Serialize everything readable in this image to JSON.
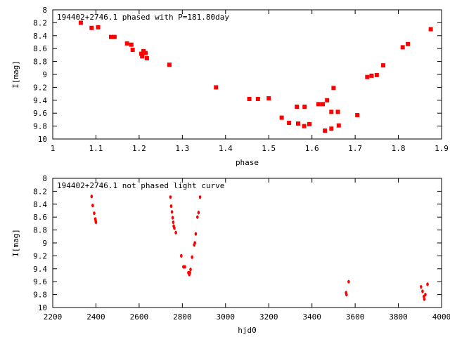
{
  "chart_data": [
    {
      "type": "scatter",
      "title": "194402+2746.1 phased with P=181.80day",
      "xlabel": "phase",
      "ylabel": "I[mag]",
      "xlim": [
        1,
        1.9
      ],
      "ylim": [
        10,
        8
      ],
      "y_inverted": true,
      "xticks": [
        1,
        1.1,
        1.2,
        1.3,
        1.4,
        1.5,
        1.6,
        1.7,
        1.8,
        1.9
      ],
      "yticks": [
        8,
        8.2,
        8.4,
        8.6,
        8.8,
        9,
        9.2,
        9.4,
        9.6,
        9.8,
        10
      ],
      "xtick_labels": [
        "1",
        "1.1",
        "1.2",
        "1.3",
        "1.4",
        "1.5",
        "1.6",
        "1.7",
        "1.8",
        "1.9"
      ],
      "ytick_labels": [
        "8",
        "8.2",
        "8.4",
        "8.6",
        "8.8",
        "9",
        "9.2",
        "9.4",
        "9.6",
        "9.8",
        "10"
      ],
      "marker": "square",
      "color": "#ff0000",
      "x": [
        1.065,
        1.09,
        1.105,
        1.135,
        1.143,
        1.172,
        1.182,
        1.185,
        1.205,
        1.207,
        1.21,
        1.215,
        1.218,
        1.27,
        1.378,
        1.455,
        1.475,
        1.5,
        1.53,
        1.547,
        1.565,
        1.568,
        1.582,
        1.583,
        1.594,
        1.615,
        1.625,
        1.63,
        1.635,
        1.645,
        1.645,
        1.65,
        1.66,
        1.662,
        1.705,
        1.728,
        1.738,
        1.75,
        1.765,
        1.81,
        1.822,
        1.875
      ],
      "y": [
        8.2,
        8.28,
        8.27,
        8.42,
        8.42,
        8.52,
        8.54,
        8.62,
        8.68,
        8.72,
        8.64,
        8.67,
        8.75,
        8.85,
        9.2,
        9.38,
        9.38,
        9.37,
        9.67,
        9.75,
        9.5,
        9.76,
        9.8,
        9.5,
        9.77,
        9.46,
        9.46,
        9.87,
        9.4,
        9.58,
        9.84,
        9.21,
        9.58,
        9.79,
        9.63,
        9.04,
        9.02,
        9.01,
        8.86,
        8.58,
        8.53,
        8.3
      ]
    },
    {
      "type": "scatter",
      "title": "194402+2746.1 not phased light curve",
      "xlabel": "hjd0",
      "ylabel": "I[mag]",
      "xlim": [
        2200,
        4000
      ],
      "ylim": [
        10,
        8
      ],
      "y_inverted": true,
      "xticks": [
        2200,
        2400,
        2600,
        2800,
        3000,
        3200,
        3400,
        3600,
        3800,
        4000
      ],
      "yticks": [
        8,
        8.2,
        8.4,
        8.6,
        8.8,
        9,
        9.2,
        9.4,
        9.6,
        9.8,
        10
      ],
      "xtick_labels": [
        "2200",
        "2400",
        "2600",
        "2800",
        "3000",
        "3200",
        "3400",
        "3600",
        "3800",
        "4000"
      ],
      "ytick_labels": [
        "8",
        "8.2",
        "8.4",
        "8.6",
        "8.8",
        "9",
        "9.2",
        "9.4",
        "9.6",
        "9.8",
        "10"
      ],
      "marker": "dot",
      "color": "#ff0000",
      "x": [
        2380,
        2385,
        2392,
        2397,
        2399,
        2400,
        2745,
        2748,
        2752,
        2755,
        2758,
        2760,
        2763,
        2770,
        2795,
        2805,
        2812,
        2828,
        2832,
        2835,
        2838,
        2845,
        2855,
        2858,
        2862,
        2870,
        2875,
        2882,
        3558,
        3560,
        3570,
        3905,
        3912,
        3918,
        3920,
        3925,
        3935
      ],
      "y": [
        8.28,
        8.42,
        8.54,
        8.63,
        8.66,
        8.68,
        8.29,
        8.43,
        8.52,
        8.61,
        8.68,
        8.74,
        8.77,
        8.84,
        9.2,
        9.37,
        9.37,
        9.46,
        9.49,
        9.46,
        9.41,
        9.22,
        9.03,
        9.0,
        8.86,
        8.6,
        8.53,
        8.29,
        9.77,
        9.8,
        9.6,
        9.68,
        9.75,
        9.83,
        9.87,
        9.8,
        9.64
      ]
    }
  ]
}
